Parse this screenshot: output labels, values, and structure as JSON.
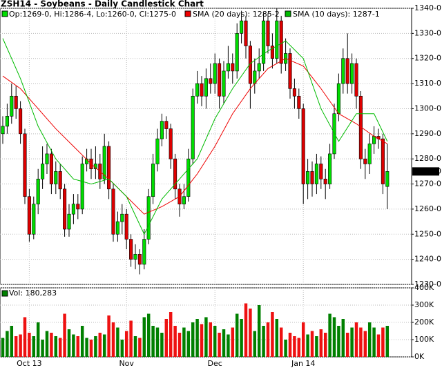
{
  "chart_data": {
    "type": "candlestick",
    "title": "ZSH14 - Soybeans - Daily Candlestick Chart",
    "ohlc_label": "Op:1269-0, Hi:1286-4, Lo:1260-0, Cl:1275-0",
    "last_price_label": "1275-0",
    "volume_label": "Vol: 180,283",
    "up_color": "#00dd00",
    "down_color": "#dd0000",
    "volume_up_color": "#008000",
    "volume_down_color": "#ee1111",
    "xlim": [
      -0.625,
      92.5
    ],
    "xticks": [
      {
        "value": 6,
        "label": "Oct 13"
      },
      {
        "value": 28,
        "label": "Nov"
      },
      {
        "value": 48,
        "label": "Dec"
      },
      {
        "value": 68,
        "label": "Jan 14"
      }
    ],
    "ylim": [
      1230,
      1340
    ],
    "yticks": [
      {
        "value": 1230,
        "label": "1230-0"
      },
      {
        "value": 1240,
        "label": "1240-0"
      },
      {
        "value": 1250,
        "label": "1250-0"
      },
      {
        "value": 1260,
        "label": "1260-0"
      },
      {
        "value": 1270,
        "label": "1270-0"
      },
      {
        "value": 1280,
        "label": "1280-0"
      },
      {
        "value": 1290,
        "label": "1290-0"
      },
      {
        "value": 1300,
        "label": "1300-0"
      },
      {
        "value": 1310,
        "label": "1310-0"
      },
      {
        "value": 1320,
        "label": "1320-0"
      },
      {
        "value": 1330,
        "label": "1330-0"
      },
      {
        "value": 1340,
        "label": "1340-0"
      }
    ],
    "vol_ylim": [
      0,
      400000
    ],
    "vol_yticks": [
      {
        "value": 0,
        "label": "0K"
      },
      {
        "value": 100000,
        "label": "100K"
      },
      {
        "value": 200000,
        "label": "200K"
      },
      {
        "value": 300000,
        "label": "300K"
      },
      {
        "value": 400000,
        "label": "400K"
      }
    ],
    "grid": true,
    "open": [
      1290,
      1293,
      1297,
      1305,
      1300,
      1290,
      1265,
      1250,
      1262,
      1272,
      1278,
      1282,
      1270,
      1275,
      1268,
      1252,
      1258,
      1262,
      1260,
      1278,
      1280,
      1276,
      1278,
      1272,
      1285,
      1268,
      1250,
      1255,
      1258,
      1248,
      1240,
      1242,
      1238,
      1248,
      1265,
      1278,
      1288,
      1295,
      1292,
      1280,
      1268,
      1262,
      1265,
      1280,
      1305,
      1310,
      1305,
      1312,
      1310,
      1318,
      1305,
      1315,
      1318,
      1315,
      1330,
      1335,
      1325,
      1310,
      1315,
      1318,
      1335,
      1325,
      1320,
      1335,
      1318,
      1322,
      1308,
      1305,
      1300,
      1270,
      1275,
      1270,
      1278,
      1272,
      1270,
      1282,
      1298,
      1310,
      1320,
      1310,
      1318,
      1305,
      1280,
      1278,
      1286,
      1289,
      1288,
      1269
    ],
    "high": [
      1297,
      1302,
      1310,
      1309,
      1303,
      1292,
      1268,
      1265,
      1276,
      1285,
      1286,
      1284,
      1279,
      1278,
      1270,
      1262,
      1266,
      1266,
      1281,
      1284,
      1284,
      1285,
      1282,
      1290,
      1287,
      1270,
      1259,
      1262,
      1260,
      1250,
      1246,
      1244,
      1252,
      1268,
      1282,
      1292,
      1298,
      1297,
      1294,
      1282,
      1270,
      1270,
      1284,
      1308,
      1315,
      1313,
      1316,
      1318,
      1322,
      1320,
      1319,
      1325,
      1322,
      1334,
      1339,
      1337,
      1327,
      1320,
      1324,
      1338,
      1338,
      1330,
      1340,
      1337,
      1328,
      1324,
      1312,
      1308,
      1302,
      1280,
      1279,
      1282,
      1281,
      1276,
      1286,
      1302,
      1314,
      1324,
      1330,
      1322,
      1320,
      1307,
      1284,
      1290,
      1293,
      1292,
      1290,
      1286
    ],
    "low": [
      1286,
      1290,
      1294,
      1296,
      1286,
      1262,
      1247,
      1248,
      1258,
      1268,
      1274,
      1266,
      1266,
      1264,
      1249,
      1249,
      1254,
      1256,
      1258,
      1275,
      1272,
      1272,
      1268,
      1270,
      1264,
      1247,
      1247,
      1250,
      1244,
      1237,
      1236,
      1234,
      1236,
      1246,
      1262,
      1275,
      1285,
      1288,
      1276,
      1264,
      1257,
      1260,
      1263,
      1278,
      1302,
      1301,
      1300,
      1306,
      1306,
      1300,
      1302,
      1312,
      1310,
      1312,
      1326,
      1320,
      1300,
      1306,
      1312,
      1315,
      1322,
      1316,
      1318,
      1314,
      1315,
      1304,
      1300,
      1296,
      1262,
      1264,
      1265,
      1266,
      1268,
      1264,
      1268,
      1280,
      1295,
      1306,
      1306,
      1306,
      1300,
      1276,
      1272,
      1274,
      1282,
      1284,
      1266,
      1260
    ],
    "close": [
      1293,
      1297,
      1305,
      1300,
      1290,
      1265,
      1250,
      1262,
      1272,
      1278,
      1282,
      1270,
      1275,
      1268,
      1252,
      1258,
      1262,
      1260,
      1278,
      1280,
      1276,
      1278,
      1272,
      1285,
      1268,
      1250,
      1255,
      1258,
      1248,
      1240,
      1242,
      1238,
      1248,
      1265,
      1278,
      1288,
      1295,
      1292,
      1280,
      1268,
      1262,
      1265,
      1280,
      1305,
      1310,
      1305,
      1312,
      1310,
      1318,
      1305,
      1315,
      1318,
      1315,
      1330,
      1335,
      1325,
      1310,
      1315,
      1318,
      1335,
      1325,
      1320,
      1335,
      1318,
      1322,
      1308,
      1305,
      1300,
      1270,
      1275,
      1270,
      1278,
      1272,
      1270,
      1282,
      1298,
      1310,
      1320,
      1310,
      1318,
      1305,
      1280,
      1278,
      1286,
      1289,
      1288,
      1270,
      1275
    ],
    "volume": [
      110000,
      150000,
      180000,
      120000,
      130000,
      230000,
      140000,
      120000,
      200000,
      100000,
      150000,
      140000,
      120000,
      110000,
      250000,
      160000,
      130000,
      120000,
      180000,
      110000,
      100000,
      120000,
      140000,
      130000,
      240000,
      200000,
      170000,
      100000,
      150000,
      210000,
      120000,
      110000,
      230000,
      250000,
      180000,
      170000,
      140000,
      220000,
      260000,
      180000,
      140000,
      170000,
      150000,
      200000,
      220000,
      190000,
      230000,
      200000,
      180000,
      140000,
      160000,
      130000,
      170000,
      250000,
      220000,
      310000,
      280000,
      150000,
      300000,
      180000,
      200000,
      260000,
      220000,
      170000,
      100000,
      140000,
      120000,
      110000,
      200000,
      130000,
      150000,
      120000,
      160000,
      140000,
      250000,
      230000,
      180000,
      220000,
      140000,
      170000,
      200000,
      170000,
      150000,
      200000,
      170000,
      130000,
      170000,
      180000
    ],
    "series": [
      {
        "name": "SMA (20 days): 1285-2",
        "color": "#ee0000",
        "x": [
          0,
          4,
          8,
          12,
          16,
          20,
          24,
          28,
          32,
          36,
          40,
          44,
          48,
          52,
          56,
          60,
          64,
          68,
          72,
          76,
          80,
          84,
          87
        ],
        "values": [
          1313,
          1308,
          1300,
          1292,
          1285,
          1278,
          1272,
          1265,
          1258,
          1261,
          1265,
          1274,
          1285,
          1298,
          1308,
          1316,
          1320,
          1317,
          1308,
          1298,
          1294,
          1289,
          1286
        ]
      },
      {
        "name": "SMA (10 days): 1287-1",
        "color": "#00bb00",
        "x": [
          0,
          4,
          8,
          12,
          16,
          20,
          24,
          28,
          32,
          36,
          40,
          44,
          48,
          52,
          56,
          60,
          64,
          68,
          72,
          76,
          80,
          84,
          87
        ],
        "values": [
          1328,
          1312,
          1293,
          1280,
          1272,
          1270,
          1272,
          1265,
          1250,
          1264,
          1272,
          1280,
          1296,
          1308,
          1318,
          1323,
          1327,
          1320,
          1300,
          1287,
          1298,
          1298,
          1287
        ]
      }
    ]
  }
}
